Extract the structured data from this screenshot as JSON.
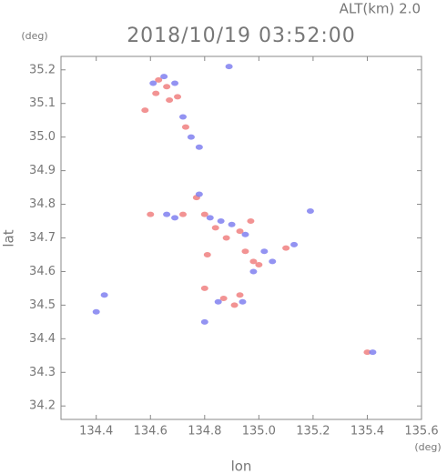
{
  "chart_data": {
    "type": "scatter",
    "title": "2018/10/19 03:52:00",
    "subtitle": "ALT(km) 2.0",
    "x_label": "lon",
    "y_label": "lat",
    "x_unit": "(deg)",
    "y_unit": "(deg)",
    "xlim": [
      134.27,
      135.6
    ],
    "ylim": [
      34.16,
      35.24
    ],
    "xticks": [
      134.4,
      134.6,
      134.8,
      {
        "value": 135.0,
        "label": "135.0"
      },
      135.2,
      135.4,
      135.6
    ],
    "yticks": [
      34.2,
      34.3,
      34.4,
      34.5,
      34.6,
      34.7,
      34.8,
      34.9,
      {
        "value": 35.0,
        "label": "35.0"
      },
      35.1,
      35.2
    ],
    "series": [
      {
        "color": "#f08080",
        "x": [
          134.58,
          134.62,
          134.66,
          134.67,
          134.63,
          134.7,
          134.73,
          134.6,
          134.72,
          134.77,
          134.8,
          134.84,
          134.88,
          134.93,
          134.95,
          134.98,
          135.0,
          134.81,
          134.87,
          134.91,
          134.93,
          134.8,
          135.4,
          134.97,
          135.1
        ],
        "values": [
          35.08,
          35.13,
          35.15,
          35.11,
          35.17,
          35.12,
          35.03,
          34.77,
          34.77,
          34.82,
          34.77,
          34.73,
          34.7,
          34.72,
          34.66,
          34.63,
          34.62,
          34.65,
          34.52,
          34.5,
          34.53,
          34.55,
          34.36,
          34.75,
          34.67
        ]
      },
      {
        "color": "#8080f0",
        "x": [
          134.61,
          134.65,
          134.69,
          134.72,
          134.75,
          134.78,
          134.66,
          134.69,
          134.78,
          134.82,
          134.86,
          134.9,
          134.95,
          135.02,
          135.05,
          134.98,
          134.85,
          134.94,
          134.4,
          134.43,
          135.42,
          135.19,
          135.13,
          134.89,
          134.8
        ],
        "values": [
          35.16,
          35.18,
          35.16,
          35.06,
          35.0,
          34.97,
          34.77,
          34.76,
          34.83,
          34.76,
          34.75,
          34.74,
          34.71,
          34.66,
          34.63,
          34.6,
          34.51,
          34.51,
          34.48,
          34.53,
          34.36,
          34.78,
          34.68,
          35.21,
          34.45
        ]
      }
    ]
  }
}
